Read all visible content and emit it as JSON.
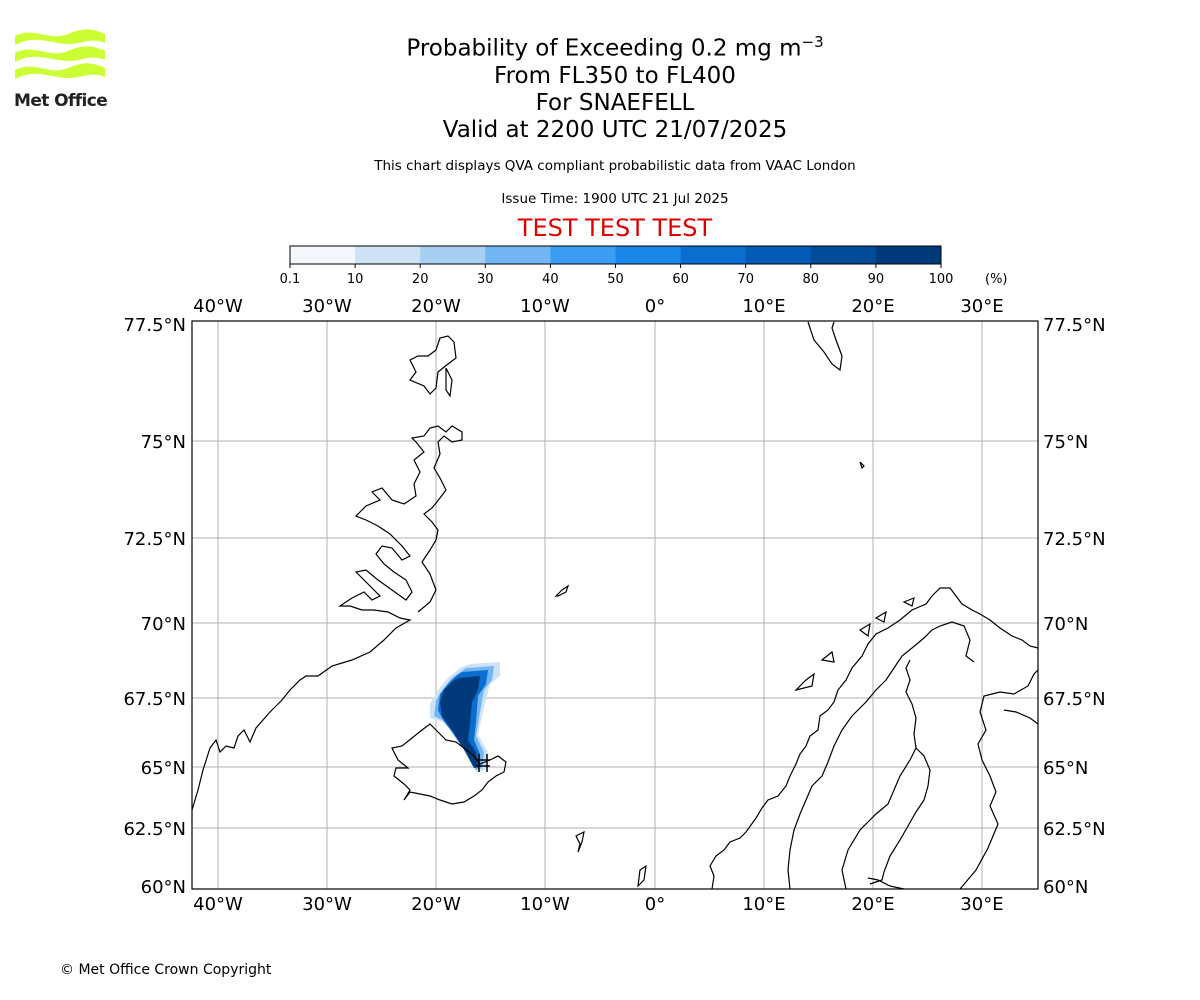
{
  "logo": {
    "text": "Met Office",
    "color": "#ccff33"
  },
  "header": {
    "title_main": "Probability of Exceeding 0.2 mg m",
    "title_sup": "−3",
    "levels": "From FL350 to FL400",
    "volcano": "For SNAEFELL",
    "valid": "Valid at 2200 UTC 21/07/2025",
    "description": "This chart displays QVA compliant probabilistic data from VAAC London",
    "issue_time": "Issue Time: 1900 UTC 21 Jul 2025",
    "test_banner": "TEST TEST TEST",
    "test_color": "#dd0000"
  },
  "colorbar": {
    "ticks": [
      "0.1",
      "10",
      "20",
      "30",
      "40",
      "50",
      "60",
      "70",
      "80",
      "90",
      "100"
    ],
    "unit": "(%)",
    "colors": [
      "#f1f7fd",
      "#cde2f5",
      "#a6cff2",
      "#72b7f3",
      "#3b9df2",
      "#1a86ea",
      "#0a6ed0",
      "#035bb6",
      "#004c99",
      "#003a7a"
    ]
  },
  "map": {
    "lon_labels": [
      "40°W",
      "30°W",
      "20°W",
      "10°W",
      "0°",
      "10°E",
      "20°E",
      "30°E"
    ],
    "lat_labels": [
      "77.5°N",
      "75°N",
      "72.5°N",
      "70°N",
      "67.5°N",
      "65°N",
      "62.5°N",
      "60°N"
    ],
    "volcano_marker": "Snaefell"
  },
  "footer": {
    "copyright": "© Met Office Crown Copyright"
  }
}
